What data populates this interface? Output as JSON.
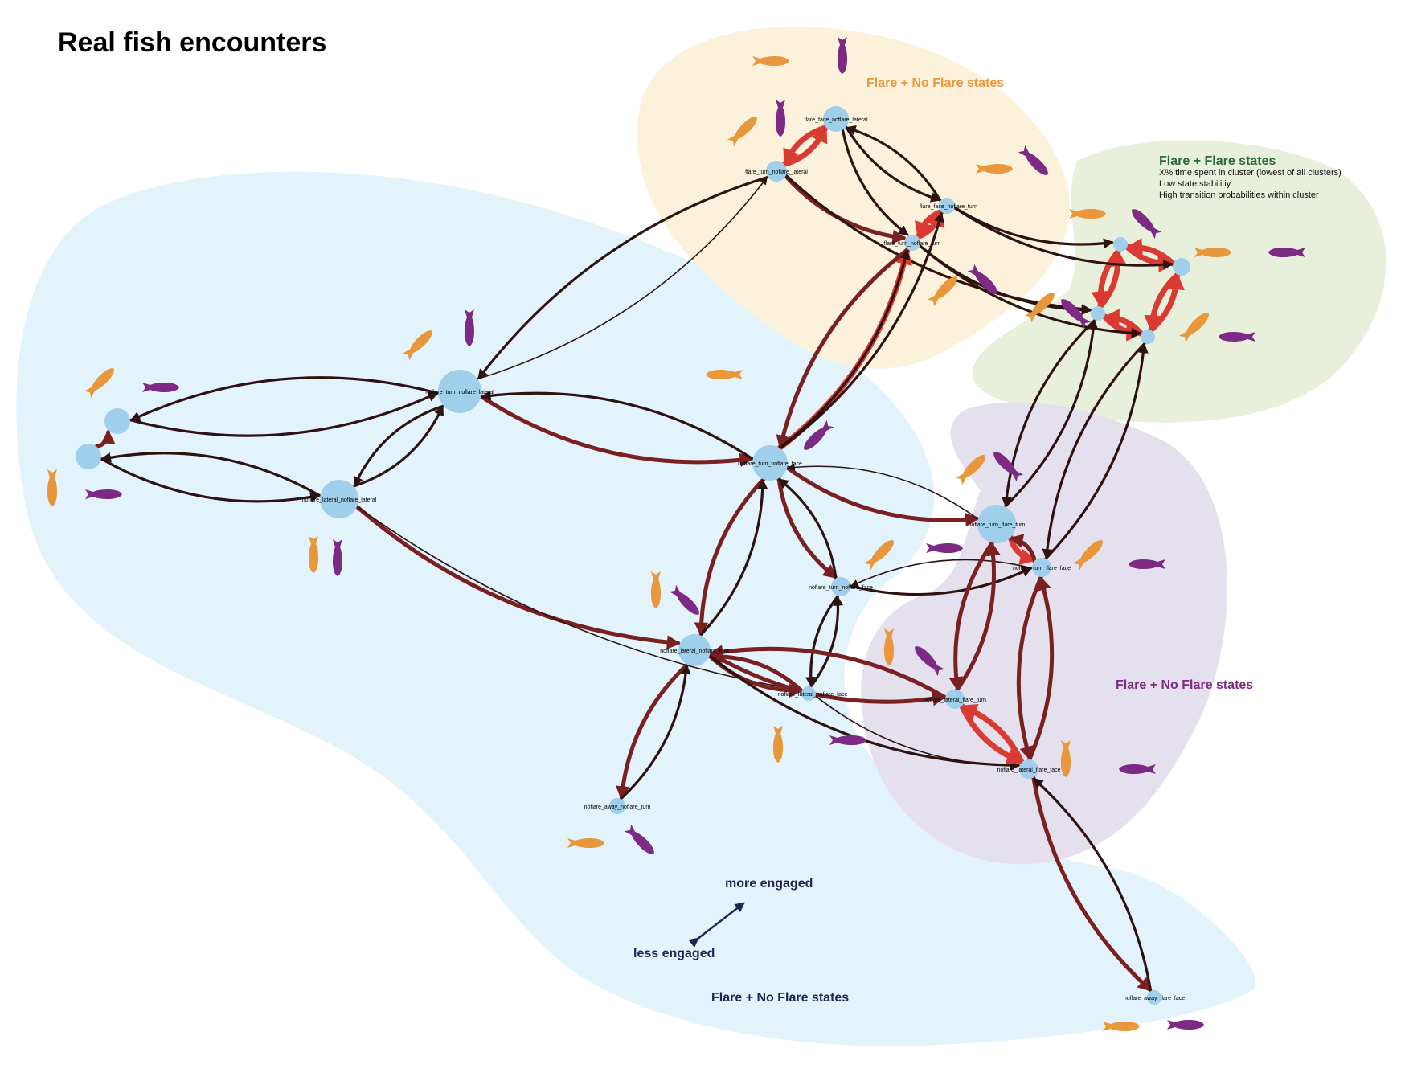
{
  "title": "Real fish encounters",
  "colors": {
    "node": "#9fcfea",
    "edge_strong": "#d93a32",
    "edge_mid": "#7a2020",
    "edge_weak": "#2e1212",
    "fish_orange": "#e8973b",
    "fish_purple": "#7d2a85",
    "axis": "#1f2455"
  },
  "clusters": [
    {
      "id": "c1",
      "label": "Flare + No Flare states",
      "fill": "#fcf2dc",
      "label_color": "#e8973b"
    },
    {
      "id": "c2",
      "label": "Flare + Flare states",
      "fill": "#e8f0dc",
      "label_color": "#2d6a3a",
      "notes": [
        "X% time spent in cluster (lowest of all clusters)",
        "Low state stabilitiy",
        "High transition probabilities within cluster"
      ]
    },
    {
      "id": "c3",
      "label": "Flare + No Flare states",
      "fill": "#e4e0ee",
      "label_color": "#7d2a85"
    },
    {
      "id": "c4",
      "label": "Flare + No Flare states",
      "fill": "#e2f3fb",
      "label_color": "#1f2455"
    }
  ],
  "nodes": [
    {
      "id": "n1",
      "label": "flare_face_noflare_lateral"
    },
    {
      "id": "n2",
      "label": "flare_turn_noflare_lateral"
    },
    {
      "id": "n3",
      "label": "flare_face_noflare_turn"
    },
    {
      "id": "n4",
      "label": "flare_turn_noflare_turn"
    },
    {
      "id": "n5",
      "label": ""
    },
    {
      "id": "n6",
      "label": ""
    },
    {
      "id": "n7",
      "label": ""
    },
    {
      "id": "n8",
      "label": ""
    },
    {
      "id": "n9",
      "label": "noflare_turn_noflare_lateral"
    },
    {
      "id": "n10",
      "label": ""
    },
    {
      "id": "n11",
      "label": ""
    },
    {
      "id": "n12",
      "label": "noflare_lateral_noflare_lateral"
    },
    {
      "id": "n13",
      "label": "noflare_turn_noflare_face"
    },
    {
      "id": "n14",
      "label": "noflare_turn_flare_turn"
    },
    {
      "id": "n15",
      "label": "noflare_turn_flare_face"
    },
    {
      "id": "n16",
      "label": "noflare_turn_noflare_face"
    },
    {
      "id": "n17",
      "label": "noflare_lateral_noflare_turn"
    },
    {
      "id": "n18",
      "label": "noflare_lateral_noflare_face"
    },
    {
      "id": "n19",
      "label": "noflare_lateral_flare_turn"
    },
    {
      "id": "n20",
      "label": "noflare_lateral_flare_face"
    },
    {
      "id": "n21",
      "label": "noflare_away_noflare_turn"
    },
    {
      "id": "n22",
      "label": "noflare_away_flare_face"
    }
  ],
  "edges": [
    {
      "from": "n1",
      "to": "n2",
      "w": "strong"
    },
    {
      "from": "n2",
      "to": "n1",
      "w": "strong"
    },
    {
      "from": "n3",
      "to": "n4",
      "w": "strong"
    },
    {
      "from": "n4",
      "to": "n3",
      "w": "strong"
    },
    {
      "from": "n1",
      "to": "n3",
      "w": "weak"
    },
    {
      "from": "n1",
      "to": "n4",
      "w": "weak"
    },
    {
      "from": "n3",
      "to": "n1",
      "w": "weak"
    },
    {
      "from": "n2",
      "to": "n4",
      "w": "mid"
    },
    {
      "from": "n2",
      "to": "n7",
      "w": "weak"
    },
    {
      "from": "n3",
      "to": "n5",
      "w": "weak"
    },
    {
      "from": "n4",
      "to": "n7",
      "w": "weak"
    },
    {
      "from": "n5",
      "to": "n6",
      "w": "strong"
    },
    {
      "from": "n6",
      "to": "n5",
      "w": "strong"
    },
    {
      "from": "n5",
      "to": "n7",
      "w": "strong"
    },
    {
      "from": "n7",
      "to": "n5",
      "w": "strong"
    },
    {
      "from": "n6",
      "to": "n8",
      "w": "strong"
    },
    {
      "from": "n8",
      "to": "n6",
      "w": "strong"
    },
    {
      "from": "n7",
      "to": "n8",
      "w": "strong"
    },
    {
      "from": "n8",
      "to": "n7",
      "w": "strong"
    },
    {
      "from": "n9",
      "to": "n10",
      "w": "weak"
    },
    {
      "from": "n10",
      "to": "n9",
      "w": "weak"
    },
    {
      "from": "n11",
      "to": "n10",
      "w": "mid"
    },
    {
      "from": "n11",
      "to": "n12",
      "w": "weak"
    },
    {
      "from": "n12",
      "to": "n11",
      "w": "weak"
    },
    {
      "from": "n9",
      "to": "n12",
      "w": "weak"
    },
    {
      "from": "n12",
      "to": "n9",
      "w": "weak"
    },
    {
      "from": "n2",
      "to": "n9",
      "w": "weak"
    },
    {
      "from": "n9",
      "to": "n2",
      "w": "thin"
    },
    {
      "from": "n9",
      "to": "n13",
      "w": "mid"
    },
    {
      "from": "n13",
      "to": "n9",
      "w": "weak"
    },
    {
      "from": "n12",
      "to": "n17",
      "w": "mid"
    },
    {
      "from": "n12",
      "to": "n18",
      "w": "thin"
    },
    {
      "from": "n13",
      "to": "n4",
      "w": "strong"
    },
    {
      "from": "n4",
      "to": "n13",
      "w": "mid"
    },
    {
      "from": "n13",
      "to": "n3",
      "w": "weak"
    },
    {
      "from": "n13",
      "to": "n4",
      "w": "weak"
    },
    {
      "from": "n13",
      "to": "n14",
      "w": "mid"
    },
    {
      "from": "n14",
      "to": "n13",
      "w": "thin"
    },
    {
      "from": "n13",
      "to": "n16",
      "w": "mid"
    },
    {
      "from": "n16",
      "to": "n13",
      "w": "weak"
    },
    {
      "from": "n13",
      "to": "n17",
      "w": "mid"
    },
    {
      "from": "n17",
      "to": "n13",
      "w": "weak"
    },
    {
      "from": "n16",
      "to": "n15",
      "w": "weak"
    },
    {
      "from": "n15",
      "to": "n16",
      "w": "thin"
    },
    {
      "from": "n16",
      "to": "n18",
      "w": "weak"
    },
    {
      "from": "n18",
      "to": "n16",
      "w": "weak"
    },
    {
      "from": "n17",
      "to": "n18",
      "w": "mid"
    },
    {
      "from": "n18",
      "to": "n17",
      "w": "mid"
    },
    {
      "from": "n17",
      "to": "n19",
      "w": "mid"
    },
    {
      "from": "n19",
      "to": "n17",
      "w": "mid"
    },
    {
      "from": "n17",
      "to": "n20",
      "w": "weak"
    },
    {
      "from": "n17",
      "to": "n21",
      "w": "mid"
    },
    {
      "from": "n21",
      "to": "n17",
      "w": "weak"
    },
    {
      "from": "n18",
      "to": "n20",
      "w": "thin"
    },
    {
      "from": "n14",
      "to": "n15",
      "w": "strong"
    },
    {
      "from": "n15",
      "to": "n14",
      "w": "mid"
    },
    {
      "from": "n14",
      "to": "n19",
      "w": "mid"
    },
    {
      "from": "n19",
      "to": "n14",
      "w": "mid"
    },
    {
      "from": "n15",
      "to": "n20",
      "w": "mid"
    },
    {
      "from": "n20",
      "to": "n15",
      "w": "mid"
    },
    {
      "from": "n19",
      "to": "n20",
      "w": "strong"
    },
    {
      "from": "n20",
      "to": "n19",
      "w": "strong"
    },
    {
      "from": "n20",
      "to": "n22",
      "w": "mid"
    },
    {
      "from": "n22",
      "to": "n20",
      "w": "weak"
    },
    {
      "from": "n7",
      "to": "n14",
      "w": "weak"
    },
    {
      "from": "n14",
      "to": "n7",
      "w": "weak"
    },
    {
      "from": "n8",
      "to": "n15",
      "w": "weak"
    },
    {
      "from": "n15",
      "to": "n8",
      "w": "weak"
    },
    {
      "from": "n3",
      "to": "n6",
      "w": "weak"
    },
    {
      "from": "n4",
      "to": "n8",
      "w": "weak"
    }
  ],
  "fish_icons": [
    {
      "node": "n1",
      "orange": "right",
      "purple": "down"
    },
    {
      "node": "n2",
      "orange": "upright",
      "purple": "down"
    },
    {
      "node": "n3",
      "orange": "right",
      "purple": "downright"
    },
    {
      "node": "n4",
      "orange": "upright",
      "purple": "downright"
    },
    {
      "node": "n5",
      "orange": "right",
      "purple": "upleft"
    },
    {
      "node": "n6",
      "orange": "right",
      "purple": "left"
    },
    {
      "node": "n7",
      "orange": "upright",
      "purple": "upleft"
    },
    {
      "node": "n8",
      "orange": "upright",
      "purple": "left"
    },
    {
      "node": "n9",
      "orange": "upright",
      "purple": "down"
    },
    {
      "node": "n10",
      "orange": "upright",
      "purple": "right"
    },
    {
      "node": "n11",
      "orange": "down",
      "purple": "right"
    },
    {
      "node": "n12",
      "orange": "down",
      "purple": "down"
    },
    {
      "node": "n13",
      "orange": "left",
      "purple": "downleft"
    },
    {
      "node": "n14",
      "orange": "upright",
      "purple": "upleft"
    },
    {
      "node": "n15",
      "orange": "upright",
      "purple": "left"
    },
    {
      "node": "n16",
      "orange": "upright",
      "purple": "right"
    },
    {
      "node": "n17",
      "orange": "down",
      "purple": "downright"
    },
    {
      "node": "n18",
      "orange": "down",
      "purple": "right"
    },
    {
      "node": "n19",
      "orange": "down",
      "purple": "upleft"
    },
    {
      "node": "n20",
      "orange": "down",
      "purple": "left"
    },
    {
      "node": "n21",
      "orange": "right",
      "purple": "downright"
    },
    {
      "node": "n22",
      "orange": "right",
      "purple": "right"
    }
  ],
  "axis": {
    "more": "more engaged",
    "less": "less engaged"
  }
}
